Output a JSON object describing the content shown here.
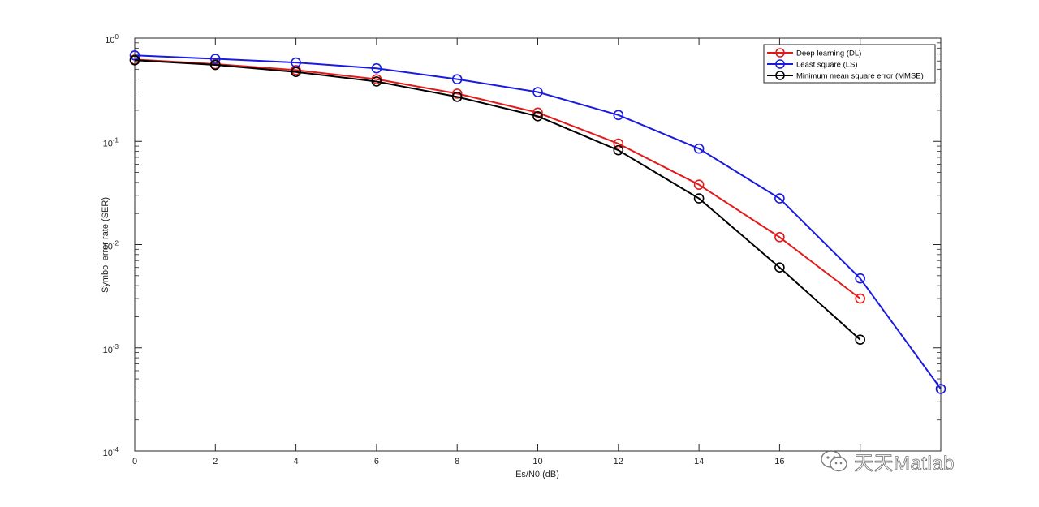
{
  "chart_data": {
    "type": "line",
    "xlabel": "Es/N0 (dB)",
    "ylabel": "Symbol error rate (SER)",
    "y_scale": "log",
    "xlim": [
      0,
      20
    ],
    "ylim": [
      0.0001,
      1
    ],
    "x_ticks": [
      0,
      2,
      4,
      6,
      8,
      10,
      12,
      14,
      16,
      18,
      20
    ],
    "x_tick_labels": [
      "0",
      "2",
      "4",
      "6",
      "8",
      "10",
      "12",
      "14",
      "16",
      "",
      ""
    ],
    "y_ticks": [
      {
        "value": 0.0001,
        "base": "10",
        "exp": "-4"
      },
      {
        "value": 0.001,
        "base": "10",
        "exp": "-3"
      },
      {
        "value": 0.01,
        "base": "10",
        "exp": "-2"
      },
      {
        "value": 0.1,
        "base": "10",
        "exp": "-1"
      },
      {
        "value": 1,
        "base": "10",
        "exp": "0"
      }
    ],
    "grid": false,
    "legend_position": "top-right",
    "series": [
      {
        "name": "Deep learning (DL)",
        "color": "#e41a1a",
        "marker": "circle",
        "x": [
          0,
          2,
          4,
          6,
          8,
          10,
          12,
          14,
          16,
          18
        ],
        "y": [
          0.62,
          0.56,
          0.49,
          0.4,
          0.29,
          0.19,
          0.095,
          0.038,
          0.0118,
          0.003
        ]
      },
      {
        "name": "Least square (LS)",
        "color": "#1a1ae0",
        "marker": "circle",
        "x": [
          0,
          2,
          4,
          6,
          8,
          10,
          12,
          14,
          16,
          18,
          20
        ],
        "y": [
          0.68,
          0.63,
          0.58,
          0.51,
          0.4,
          0.3,
          0.18,
          0.085,
          0.028,
          0.0047,
          0.0004
        ]
      },
      {
        "name": "Minimum mean square error (MMSE)",
        "color": "#000000",
        "marker": "circle",
        "x": [
          0,
          2,
          4,
          6,
          8,
          10,
          12,
          14,
          16,
          18
        ],
        "y": [
          0.61,
          0.55,
          0.47,
          0.38,
          0.27,
          0.175,
          0.082,
          0.028,
          0.006,
          0.0012
        ]
      }
    ]
  },
  "watermark": {
    "text": "天天Matlab",
    "icon": "wechat-icon"
  }
}
